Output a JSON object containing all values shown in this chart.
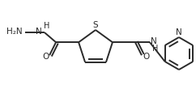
{
  "bg_color": "#ffffff",
  "line_color": "#2a2a2a",
  "line_width": 1.4,
  "font_size": 7.5,
  "font_color": "#2a2a2a",
  "figsize": [
    2.42,
    1.21
  ],
  "dpi": 100,
  "xlim": [
    0,
    242
  ],
  "ylim": [
    0,
    121
  ]
}
